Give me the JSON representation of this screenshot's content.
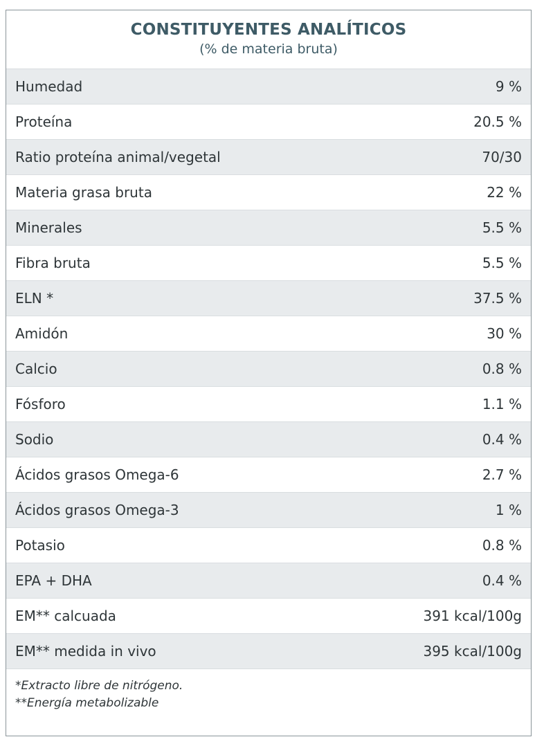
{
  "table": {
    "title": "CONSTITUYENTES ANALÍTICOS",
    "subtitle": "(% de materia bruta)",
    "rows": [
      {
        "label": "Humedad",
        "value": "9 %"
      },
      {
        "label": "Proteína",
        "value": "20.5 %"
      },
      {
        "label": "Ratio proteína animal/vegetal",
        "value": "70/30"
      },
      {
        "label": "Materia grasa bruta",
        "value": "22 %"
      },
      {
        "label": "Minerales",
        "value": "5.5 %"
      },
      {
        "label": "Fibra bruta",
        "value": "5.5 %"
      },
      {
        "label": "ELN *",
        "value": "37.5 %"
      },
      {
        "label": "Amidón",
        "value": "30 %"
      },
      {
        "label": "Calcio",
        "value": "0.8 %"
      },
      {
        "label": "Fósforo",
        "value": "1.1 %"
      },
      {
        "label": "Sodio",
        "value": "0.4 %"
      },
      {
        "label": "Ácidos grasos Omega-6",
        "value": "2.7 %"
      },
      {
        "label": "Ácidos grasos Omega-3",
        "value": "1 %"
      },
      {
        "label": "Potasio",
        "value": "0.8 %"
      },
      {
        "label": "EPA + DHA",
        "value": "0.4 %"
      },
      {
        "label": "EM** calcuada",
        "value": "391 kcal/100g"
      },
      {
        "label": "EM** medida in vivo",
        "value": "395 kcal/100g"
      }
    ],
    "footnotes": [
      "*Extracto libre de nitrógeno.",
      "**Energía metabolizable"
    ]
  },
  "colors": {
    "title": "#3e5b66",
    "row_shade": "#e8ebed",
    "border": "#8a9499",
    "text": "#2e3538"
  }
}
